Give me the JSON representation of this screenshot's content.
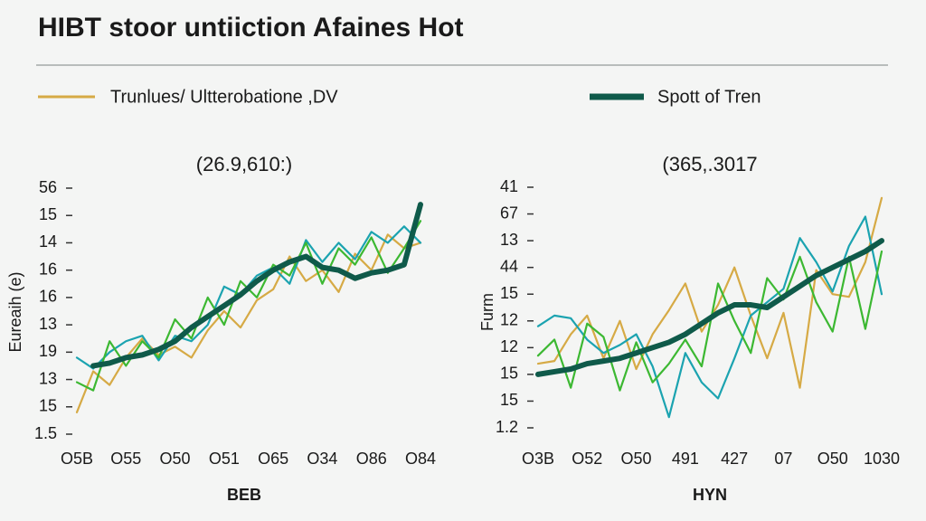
{
  "title": "HIBT stoor untiiction Afaines Hot",
  "chart_data": [
    {
      "type": "line",
      "subtitle": "(26.9,610:)",
      "y_label": "Eureaih (e)",
      "x_label": "BEB",
      "categories": [
        "O5B",
        null,
        null,
        "O55",
        null,
        null,
        "O50",
        null,
        null,
        "O51",
        null,
        null,
        "O65",
        null,
        null,
        "O34",
        null,
        null,
        "O86",
        null,
        null,
        "O84"
      ],
      "ylim": [
        0,
        9
      ],
      "yticks": [
        {
          "value": 0,
          "label": "1.5"
        },
        {
          "value": 1,
          "label": "15"
        },
        {
          "value": 2,
          "label": "13"
        },
        {
          "value": 3,
          "label": "19"
        },
        {
          "value": 4,
          "label": "13"
        },
        {
          "value": 5,
          "label": "16"
        },
        {
          "value": 6,
          "label": "16"
        },
        {
          "value": 7,
          "label": "14"
        },
        {
          "value": 8,
          "label": "15"
        },
        {
          "value": 9,
          "label": "56"
        }
      ],
      "series": [
        {
          "name": "Trunlues/ Ultterobatione ,DV",
          "color": "#d6aa45",
          "values": [
            0.8,
            2.3,
            1.8,
            2.8,
            3.5,
            2.9,
            3.2,
            2.8,
            3.8,
            4.5,
            3.9,
            4.9,
            5.3,
            6.5,
            5.6,
            6.0,
            5.2,
            6.6,
            6.0,
            7.3,
            6.8,
            7.0
          ]
        },
        {
          "color": "#1ba3b0",
          "values": [
            2.8,
            2.4,
            3.0,
            3.4,
            3.6,
            2.7,
            3.6,
            3.4,
            4.0,
            5.4,
            5.1,
            5.8,
            6.1,
            5.5,
            7.1,
            6.3,
            7.0,
            6.4,
            7.4,
            7.0,
            7.6,
            7.0
          ]
        },
        {
          "color": "#3cb832",
          "values": [
            1.9,
            1.6,
            3.4,
            2.5,
            3.4,
            2.8,
            4.2,
            3.5,
            5.0,
            4.0,
            5.6,
            5.0,
            6.2,
            5.8,
            7.0,
            5.5,
            6.8,
            6.2,
            7.2,
            5.9,
            6.8,
            7.8
          ]
        },
        {
          "name": "Spott of Tren",
          "color": "#0f5a4a",
          "values": [
            null,
            2.5,
            2.6,
            2.8,
            2.9,
            3.1,
            3.4,
            3.9,
            4.3,
            4.7,
            5.1,
            5.6,
            6.0,
            6.3,
            6.5,
            6.1,
            6.0,
            5.7,
            5.9,
            6.0,
            6.2,
            8.4
          ]
        }
      ]
    },
    {
      "type": "line",
      "subtitle": "(365,.3017",
      "y_label": "Furm",
      "x_label": "HYN",
      "categories": [
        "O3B",
        null,
        null,
        "O52",
        null,
        null,
        "O50",
        null,
        null,
        "491",
        null,
        null,
        "427",
        null,
        null,
        "07",
        null,
        null,
        "O50",
        null,
        null,
        "1030"
      ],
      "ylim": [
        0,
        9
      ],
      "yticks": [
        {
          "value": 0,
          "label": "1.2"
        },
        {
          "value": 1,
          "label": "15"
        },
        {
          "value": 2,
          "label": "15"
        },
        {
          "value": 3,
          "label": "12"
        },
        {
          "value": 4,
          "label": "12"
        },
        {
          "value": 5,
          "label": "15"
        },
        {
          "value": 6,
          "label": "44"
        },
        {
          "value": 7,
          "label": "13"
        },
        {
          "value": 8,
          "label": "67"
        },
        {
          "value": 9,
          "label": "41"
        }
      ],
      "series": [
        {
          "color": "#d6aa45",
          "values": [
            2.4,
            2.5,
            3.5,
            4.2,
            2.6,
            4.0,
            2.2,
            3.5,
            4.4,
            5.4,
            3.6,
            4.6,
            6.0,
            4.2,
            2.6,
            4.3,
            1.5,
            5.9,
            5.0,
            4.9,
            6.2,
            8.6
          ]
        },
        {
          "color": "#1ba3b0",
          "values": [
            3.8,
            4.2,
            4.1,
            3.3,
            2.8,
            3.1,
            3.5,
            2.3,
            0.4,
            2.8,
            1.7,
            1.1,
            2.6,
            4.2,
            4.7,
            5.2,
            7.1,
            6.2,
            5.1,
            6.8,
            7.9,
            5.0
          ]
        },
        {
          "color": "#3cb832",
          "values": [
            2.7,
            3.3,
            1.5,
            3.9,
            3.4,
            1.4,
            3.2,
            1.7,
            2.4,
            3.3,
            2.3,
            5.4,
            4.0,
            2.8,
            5.6,
            4.8,
            6.4,
            4.7,
            3.6,
            6.4,
            3.7,
            6.6
          ]
        },
        {
          "color": "#0f5a4a",
          "values": [
            2.0,
            2.1,
            2.2,
            2.4,
            2.5,
            2.6,
            2.8,
            3.0,
            3.2,
            3.5,
            3.9,
            4.3,
            4.6,
            4.6,
            4.5,
            4.9,
            5.3,
            5.7,
            6.0,
            6.3,
            6.6,
            7.0
          ]
        }
      ]
    }
  ]
}
